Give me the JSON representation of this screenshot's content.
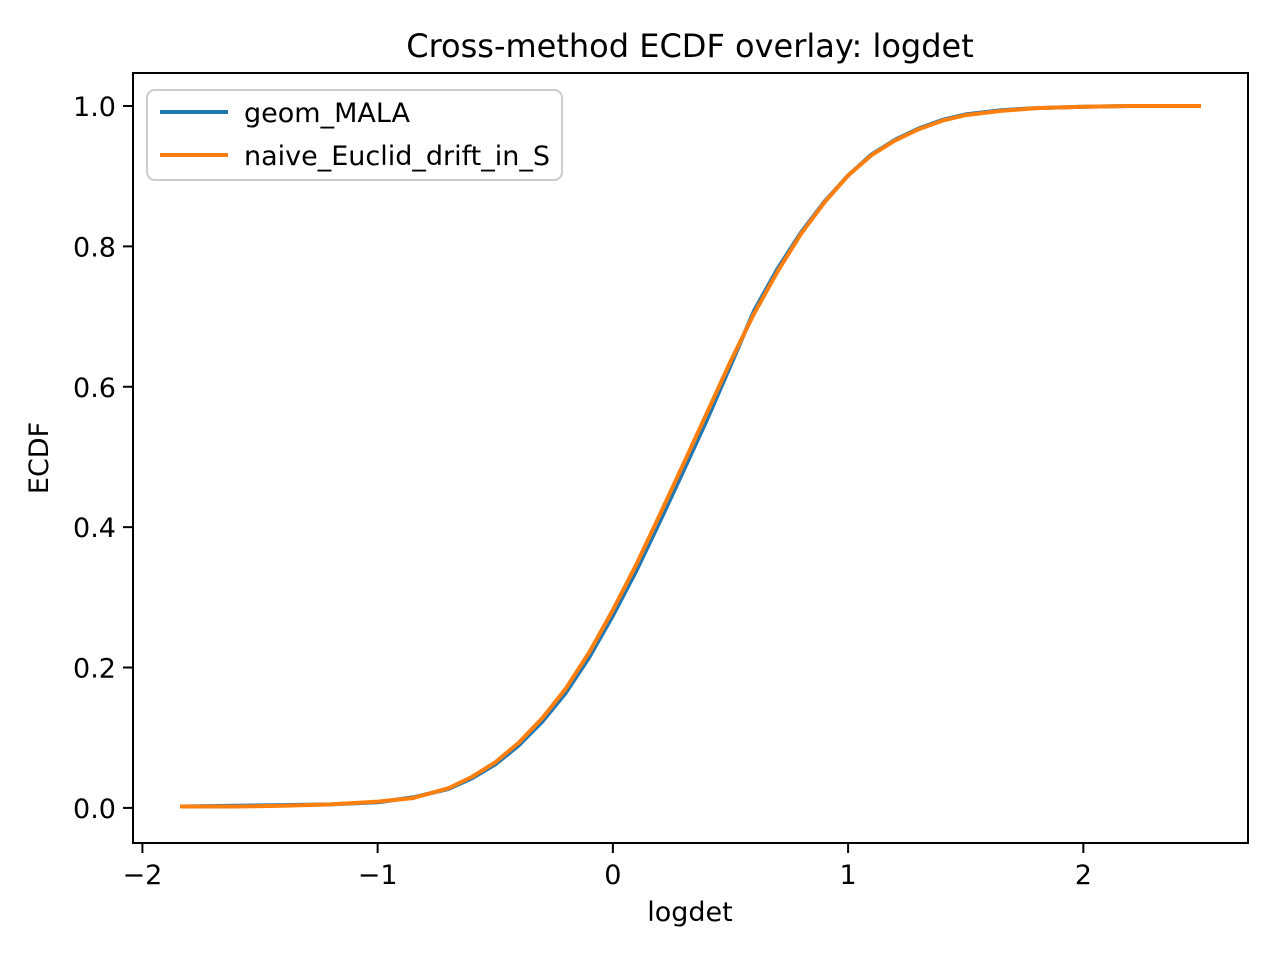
{
  "chart_data": {
    "type": "line",
    "subtype": "ecdf-overlay",
    "title": "Cross-method ECDF overlay: logdet",
    "xlabel": "logdet",
    "ylabel": "ECDF",
    "xlim": [
      -2.04,
      2.7
    ],
    "ylim": [
      -0.05,
      1.047
    ],
    "grid": false,
    "legend_position": "upper left",
    "x_ticks": {
      "values": [
        -2,
        -1,
        0,
        1,
        2
      ],
      "labels": [
        "−2",
        "−1",
        "0",
        "1",
        "2"
      ]
    },
    "y_ticks": {
      "values": [
        0.0,
        0.2,
        0.4,
        0.6,
        0.8,
        1.0
      ],
      "labels": [
        "0.0",
        "0.2",
        "0.4",
        "0.6",
        "0.8",
        "1.0"
      ]
    },
    "x": [
      -1.84,
      -1.6,
      -1.4,
      -1.2,
      -1.0,
      -0.85,
      -0.7,
      -0.6,
      -0.5,
      -0.4,
      -0.3,
      -0.2,
      -0.1,
      0.0,
      0.1,
      0.2,
      0.3,
      0.4,
      0.5,
      0.6,
      0.7,
      0.8,
      0.9,
      1.0,
      1.1,
      1.2,
      1.3,
      1.4,
      1.5,
      1.65,
      1.8,
      2.0,
      2.2,
      2.5
    ],
    "series": [
      {
        "name": "geom_MALA",
        "color": "#1f77b4",
        "ecdf": [
          0.002,
          0.003,
          0.004,
          0.005,
          0.008,
          0.015,
          0.027,
          0.042,
          0.062,
          0.089,
          0.123,
          0.164,
          0.215,
          0.274,
          0.338,
          0.408,
          0.48,
          0.553,
          0.63,
          0.708,
          0.768,
          0.82,
          0.864,
          0.901,
          0.931,
          0.952,
          0.968,
          0.98,
          0.988,
          0.994,
          0.997,
          0.999,
          1.0,
          1.0
        ]
      },
      {
        "name": "naive_Euclid_drift_in_S",
        "color": "#ff7f0e",
        "ecdf": [
          0.002,
          0.002,
          0.003,
          0.005,
          0.009,
          0.014,
          0.028,
          0.044,
          0.065,
          0.093,
          0.128,
          0.17,
          0.222,
          0.282,
          0.347,
          0.418,
          0.49,
          0.563,
          0.636,
          0.704,
          0.764,
          0.818,
          0.863,
          0.901,
          0.93,
          0.951,
          0.967,
          0.979,
          0.987,
          0.993,
          0.997,
          0.999,
          1.0,
          1.0
        ]
      }
    ],
    "style": {
      "line_width": 4,
      "spine_color": "#000000",
      "spine_width": 2,
      "tick_length": 10,
      "legend_border_color": "#cccccc",
      "legend_background": "#ffffff"
    }
  }
}
